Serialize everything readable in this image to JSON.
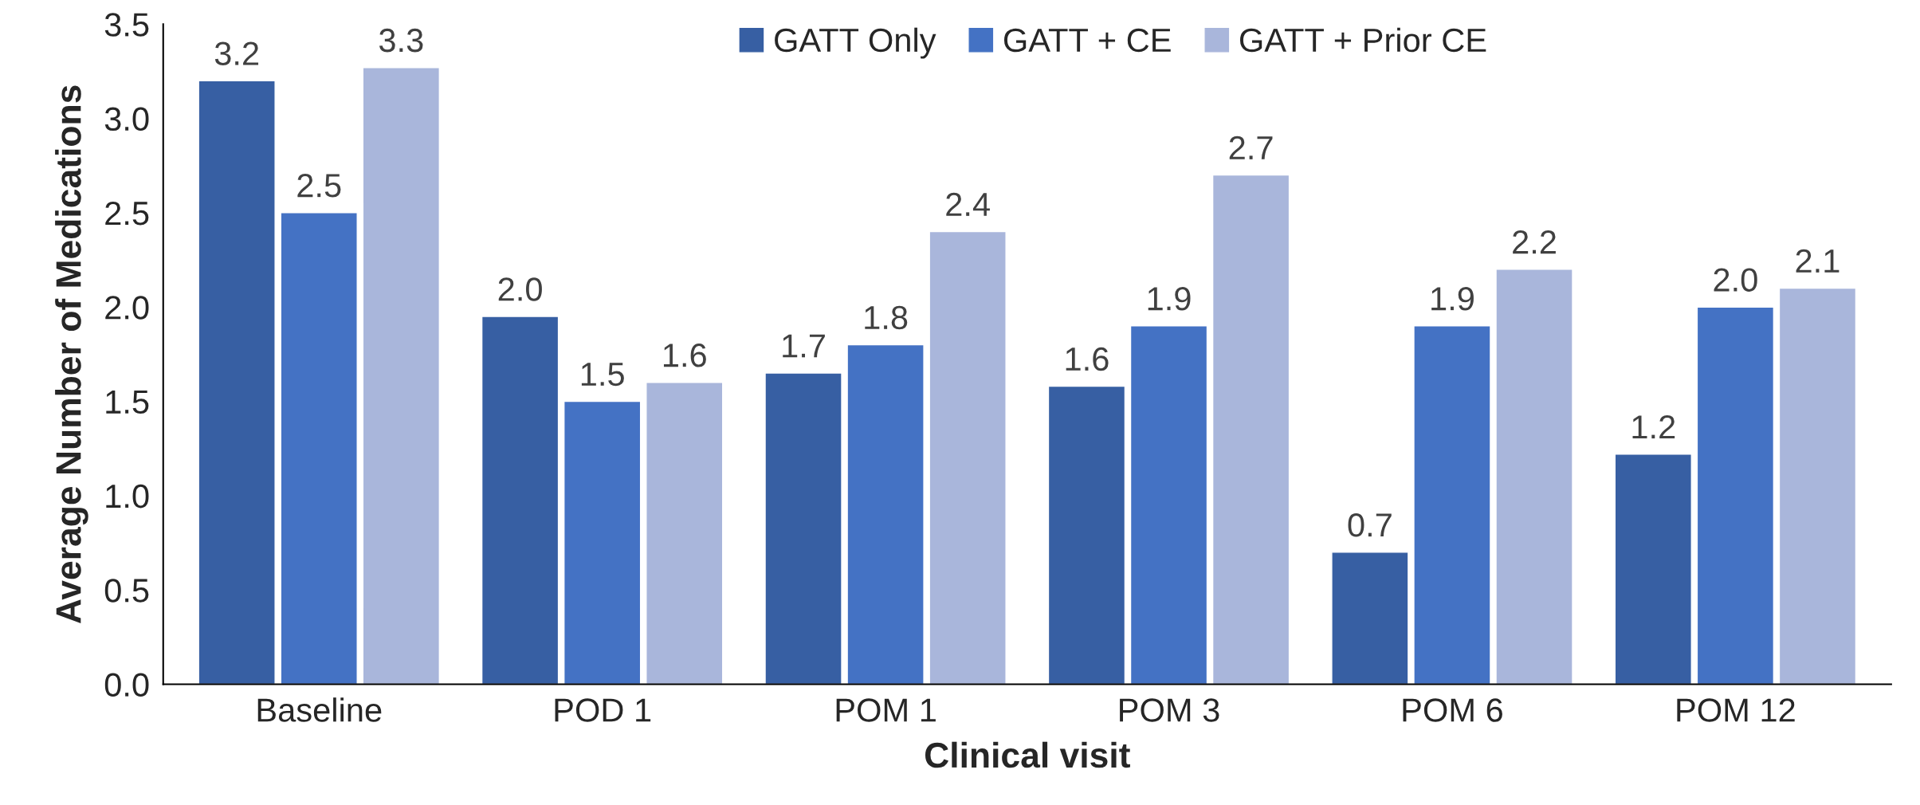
{
  "chart_data": {
    "type": "bar",
    "xlabel": "Clinical visit",
    "ylabel": "Average Number of Medications",
    "categories": [
      "Baseline",
      "POD 1",
      "POM 1",
      "POM 3",
      "POM 6",
      "POM 12"
    ],
    "series": [
      {
        "name": "GATT Only",
        "color": "#375fa3",
        "values": [
          3.2,
          1.95,
          1.65,
          1.58,
          0.7,
          1.22
        ],
        "value_labels": [
          "3.2",
          "2.0",
          "1.7",
          "1.6",
          "0.7",
          "1.2"
        ]
      },
      {
        "name": "GATT + CE",
        "color": "#4472c4",
        "values": [
          2.5,
          1.5,
          1.8,
          1.9,
          1.9,
          2.0
        ],
        "value_labels": [
          "2.5",
          "1.5",
          "1.8",
          "1.9",
          "1.9",
          "2.0"
        ]
      },
      {
        "name": "GATT + Prior CE",
        "color": "#a9b6db",
        "values": [
          3.27,
          1.6,
          2.4,
          2.7,
          2.2,
          2.1
        ],
        "value_labels": [
          "3.3",
          "1.6",
          "2.4",
          "2.7",
          "2.2",
          "2.1"
        ]
      }
    ],
    "ylim": [
      0,
      3.5
    ],
    "yticks": [
      "0.0",
      "0.5",
      "1.0",
      "1.5",
      "2.0",
      "2.5",
      "3.0",
      "3.5"
    ],
    "grid": false,
    "legend": "top"
  }
}
